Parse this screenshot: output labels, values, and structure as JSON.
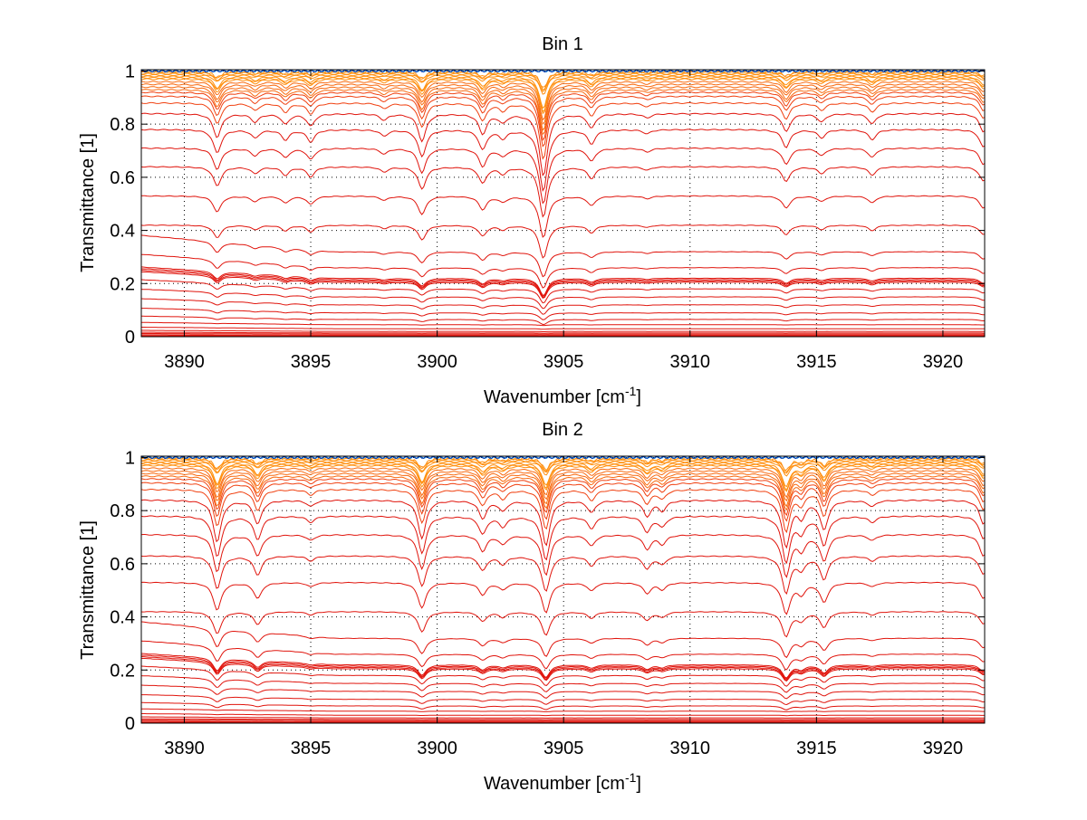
{
  "chart_data": [
    {
      "type": "line",
      "title": "Bin 1",
      "xlabel": {
        "text": "Wavenumber [cm",
        "sup": "-1",
        "close": "]"
      },
      "ylabel": "Transmittance [1]",
      "xlim": [
        3888.3,
        3921.65
      ],
      "ylim": [
        0,
        1.005
      ],
      "xticks": [
        3890,
        3895,
        3900,
        3905,
        3910,
        3915,
        3920
      ],
      "yticks": [
        0,
        0.2,
        0.4,
        0.6,
        0.8,
        1
      ],
      "ytick_labels": [
        "0",
        "0.2",
        "0.4",
        "0.6",
        "0.8",
        "1"
      ],
      "grid": true,
      "absorption_lines": [
        {
          "x": 3891.3,
          "depth": 0.12
        },
        {
          "x": 3892.8,
          "depth": 0.04
        },
        {
          "x": 3894.0,
          "depth": 0.05
        },
        {
          "x": 3895.0,
          "depth": 0.06
        },
        {
          "x": 3897.9,
          "depth": 0.03
        },
        {
          "x": 3899.4,
          "depth": 0.14
        },
        {
          "x": 3901.8,
          "depth": 0.1
        },
        {
          "x": 3902.6,
          "depth": 0.04
        },
        {
          "x": 3904.2,
          "depth": 0.35
        },
        {
          "x": 3906.1,
          "depth": 0.07
        },
        {
          "x": 3908.3,
          "depth": 0.02
        },
        {
          "x": 3913.8,
          "depth": 0.09
        },
        {
          "x": 3915.2,
          "depth": 0.04
        },
        {
          "x": 3917.2,
          "depth": 0.05
        },
        {
          "x": 3921.6,
          "depth": 0.09
        }
      ],
      "series_baselines": [
        0.003,
        0.006,
        0.01,
        0.014,
        0.02,
        0.03,
        0.045,
        0.065,
        0.09,
        0.12,
        0.15,
        0.18,
        0.205,
        0.21,
        0.215,
        0.22,
        0.26,
        0.32,
        0.42,
        0.53,
        0.64,
        0.71,
        0.78,
        0.84,
        0.88,
        0.905,
        0.92,
        0.93,
        0.94,
        0.95,
        0.96,
        0.97,
        0.975,
        0.98,
        0.985,
        0.99,
        0.995,
        0.998,
        1.0,
        1.0
      ]
    },
    {
      "type": "line",
      "title": "Bin 2",
      "xlabel": {
        "text": "Wavenumber [cm",
        "sup": "-1",
        "close": "]"
      },
      "ylabel": "Transmittance [1]",
      "xlim": [
        3888.3,
        3921.65
      ],
      "ylim": [
        0,
        1.005
      ],
      "xticks": [
        3890,
        3895,
        3900,
        3905,
        3910,
        3915,
        3920
      ],
      "yticks": [
        0,
        0.2,
        0.4,
        0.6,
        0.8,
        1
      ],
      "ytick_labels": [
        "0",
        "0.2",
        "0.4",
        "0.6",
        "0.8",
        "1"
      ],
      "grid": true,
      "absorption_lines": [
        {
          "x": 3891.3,
          "depth": 0.22
        },
        {
          "x": 3892.9,
          "depth": 0.12
        },
        {
          "x": 3895.0,
          "depth": 0.03
        },
        {
          "x": 3899.4,
          "depth": 0.2
        },
        {
          "x": 3901.8,
          "depth": 0.09
        },
        {
          "x": 3902.6,
          "depth": 0.05
        },
        {
          "x": 3904.3,
          "depth": 0.24
        },
        {
          "x": 3906.1,
          "depth": 0.06
        },
        {
          "x": 3908.3,
          "depth": 0.08
        },
        {
          "x": 3908.9,
          "depth": 0.05
        },
        {
          "x": 3913.8,
          "depth": 0.25
        },
        {
          "x": 3914.4,
          "depth": 0.08
        },
        {
          "x": 3915.3,
          "depth": 0.15
        },
        {
          "x": 3917.2,
          "depth": 0.03
        },
        {
          "x": 3921.6,
          "depth": 0.12
        }
      ],
      "series_baselines": [
        0.003,
        0.006,
        0.01,
        0.014,
        0.02,
        0.03,
        0.045,
        0.065,
        0.09,
        0.12,
        0.15,
        0.18,
        0.205,
        0.21,
        0.215,
        0.22,
        0.26,
        0.32,
        0.42,
        0.53,
        0.63,
        0.71,
        0.78,
        0.84,
        0.88,
        0.905,
        0.92,
        0.93,
        0.94,
        0.95,
        0.96,
        0.97,
        0.975,
        0.98,
        0.985,
        0.99,
        0.995,
        0.998,
        1.0,
        1.0
      ]
    }
  ]
}
